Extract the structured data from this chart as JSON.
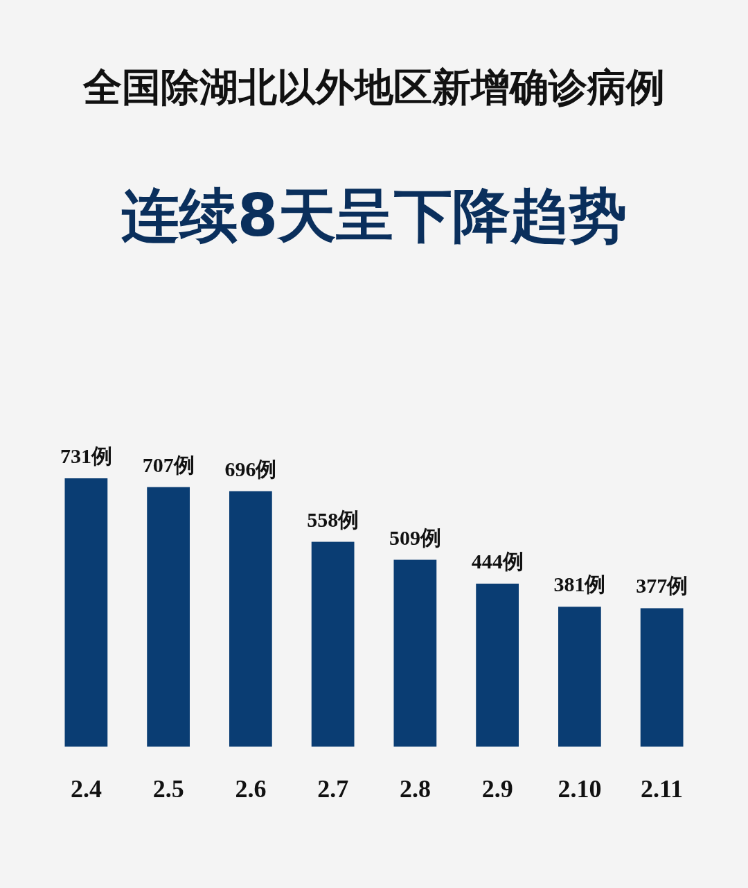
{
  "chart_data": {
    "type": "bar",
    "title": "全国除湖北以外地区新增确诊病例",
    "subtitle": "连续8天呈下降趋势",
    "categories": [
      "2.4",
      "2.5",
      "2.6",
      "2.7",
      "2.8",
      "2.9",
      "2.10",
      "2.11"
    ],
    "values": [
      731,
      707,
      696,
      558,
      509,
      444,
      381,
      377
    ],
    "value_labels": [
      "731例",
      "707例",
      "696例",
      "558例",
      "509例",
      "444例",
      "381例",
      "377例"
    ],
    "color": "#0a3d73"
  }
}
